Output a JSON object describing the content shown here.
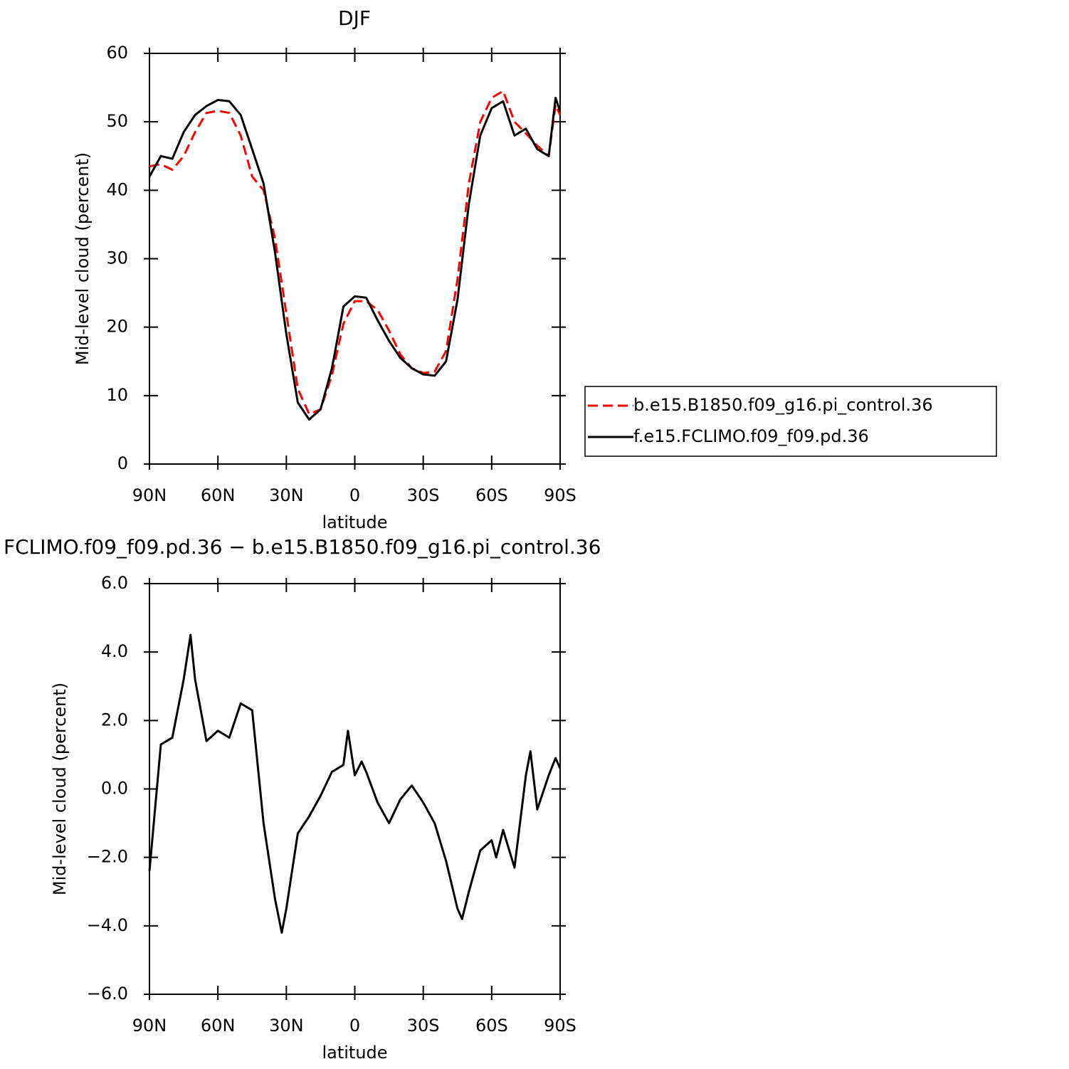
{
  "chart_data": [
    {
      "type": "line",
      "title": "DJF",
      "xlabel": "latitude",
      "ylabel": "Mid-level cloud (percent)",
      "x": [
        90,
        85,
        80,
        75,
        70,
        65,
        60,
        55,
        50,
        45,
        40,
        35,
        30,
        25,
        20,
        15,
        10,
        5,
        0,
        -5,
        -10,
        -15,
        -20,
        -25,
        -30,
        -35,
        -40,
        -45,
        -50,
        -55,
        -60,
        -65,
        -70,
        -75,
        -80,
        -85,
        -88,
        -90
      ],
      "series": [
        {
          "name": "b.e15.B1850.f09_g16.pi_control.36",
          "color": "#ff0000",
          "style": "dashed",
          "values": [
            43.5,
            43.8,
            43,
            45,
            48.5,
            51.3,
            51.6,
            51.3,
            48,
            42,
            40,
            33,
            22,
            11,
            7.3,
            8,
            13,
            20.5,
            23.8,
            23.8,
            22.5,
            19.5,
            16,
            14,
            13.3,
            13.5,
            16.5,
            27,
            41,
            50,
            53.5,
            54.5,
            50,
            48.3,
            46.5,
            45,
            52.5,
            51
          ]
        },
        {
          "name": "f.e15.FCLIMO.f09_f09.pd.36",
          "color": "#000000",
          "style": "solid",
          "values": [
            42,
            45,
            44.6,
            48.5,
            51,
            52.3,
            53.2,
            53,
            51,
            46,
            41,
            31,
            19,
            9,
            6.5,
            8,
            14,
            23,
            24.5,
            24.3,
            21,
            18,
            15.5,
            14,
            13.1,
            12.9,
            15,
            24,
            38,
            48,
            52,
            53,
            48,
            49,
            46,
            45,
            53.5,
            51.5
          ]
        }
      ],
      "xlim": [
        90,
        -90
      ],
      "xticks": [
        {
          "value": 90,
          "label": "90N"
        },
        {
          "value": 60,
          "label": "60N"
        },
        {
          "value": 30,
          "label": "30N"
        },
        0,
        {
          "value": -30,
          "label": "30S"
        },
        {
          "value": -60,
          "label": "60S"
        },
        {
          "value": -90,
          "label": "90S"
        }
      ],
      "ylim": [
        0,
        60
      ],
      "yticks": [
        0,
        10,
        20,
        30,
        40,
        50,
        60
      ],
      "legend": "right"
    },
    {
      "type": "line",
      "title": "FCLIMO.f09_f09.pd.36 − b.e15.B1850.f09_g16.pi_control.36",
      "xlabel": "latitude",
      "ylabel": "Mid-level cloud (percent)",
      "x": [
        90,
        85,
        80,
        75,
        72,
        70,
        65,
        60,
        55,
        50,
        45,
        40,
        35,
        32,
        30,
        25,
        20,
        15,
        10,
        5,
        3,
        0,
        -3,
        -5,
        -10,
        -15,
        -20,
        -25,
        -30,
        -35,
        -40,
        -45,
        -47,
        -50,
        -55,
        -60,
        -62,
        -65,
        -70,
        -75,
        -77,
        -80,
        -85,
        -88,
        -90
      ],
      "values": [
        -2.4,
        1.3,
        1.5,
        3.2,
        4.5,
        3.2,
        1.4,
        1.7,
        1.5,
        2.5,
        2.3,
        -1,
        -3.2,
        -4.2,
        -3.5,
        -1.3,
        -0.8,
        -0.2,
        0.5,
        0.7,
        1.7,
        0.4,
        0.8,
        0.5,
        -0.4,
        -1,
        -0.3,
        0.1,
        -0.4,
        -1,
        -2.1,
        -3.5,
        -3.8,
        -3,
        -1.8,
        -1.5,
        -2,
        -1.2,
        -2.3,
        0.4,
        1.1,
        -0.6,
        0.4,
        0.9,
        0.6
      ],
      "color": "#000000",
      "xlim": [
        90,
        -90
      ],
      "xticks": [
        {
          "value": 90,
          "label": "90N"
        },
        {
          "value": 60,
          "label": "60N"
        },
        {
          "value": 30,
          "label": "30N"
        },
        0,
        {
          "value": -30,
          "label": "30S"
        },
        {
          "value": -60,
          "label": "60S"
        },
        {
          "value": -90,
          "label": "90S"
        }
      ],
      "ylim": [
        -6,
        6
      ],
      "yticks": [
        {
          "value": -6,
          "label": "−6.0"
        },
        {
          "value": -4,
          "label": "−4.0"
        },
        {
          "value": -2,
          "label": "−2.0"
        },
        {
          "value": 0,
          "label": "0.0"
        },
        {
          "value": 2,
          "label": "2.0"
        },
        {
          "value": 4,
          "label": "4.0"
        },
        {
          "value": 6,
          "label": "6.0"
        }
      ]
    }
  ]
}
